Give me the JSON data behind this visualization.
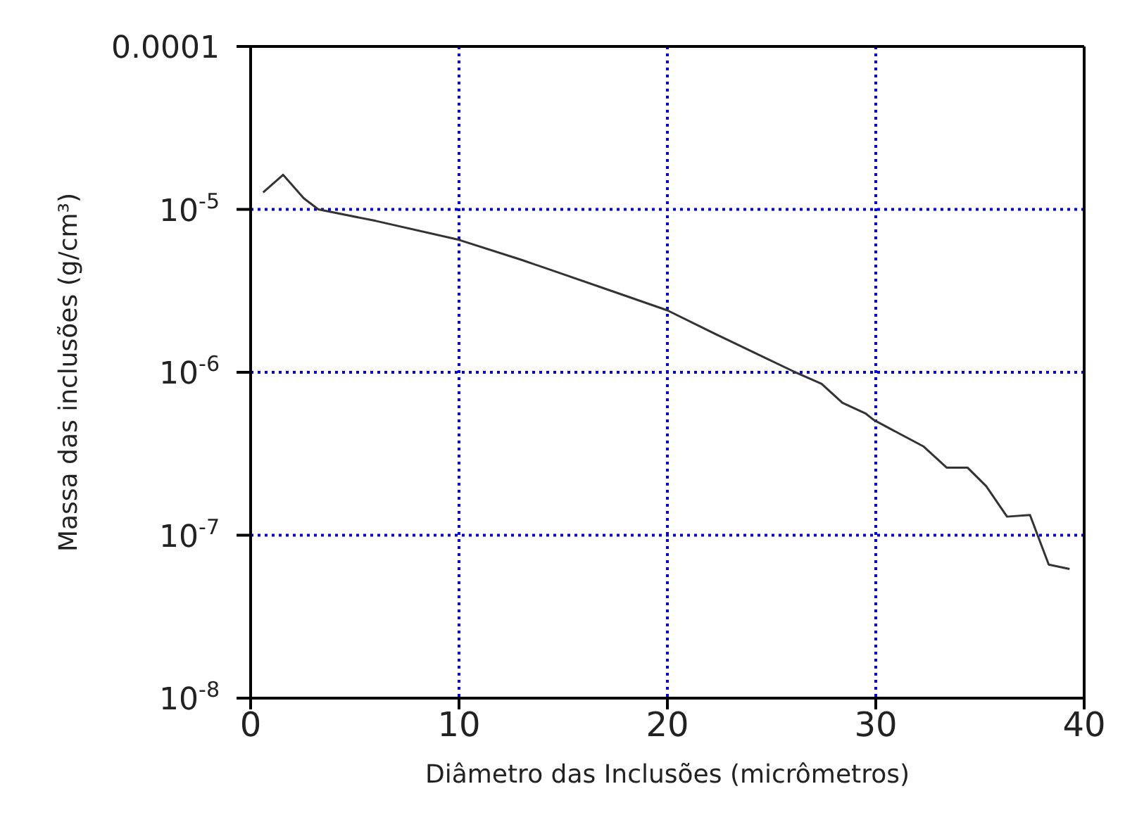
{
  "chart_data": {
    "type": "line",
    "xlabel": "Diâmetro das Inclusões (micrômetros)",
    "ylabel": "Massa das inclusões (g/cm³)",
    "x": [
      0.6,
      1.56,
      2.55,
      3.25,
      6,
      10,
      13,
      15,
      17.5,
      20,
      22.5,
      26.0,
      27.4,
      28.4,
      29.5,
      29.9,
      32.3,
      33.4,
      34.4,
      35.3,
      36.3,
      37.4,
      38.3,
      39.3
    ],
    "series": [
      {
        "color": "#333333",
        "values": [
          1.27e-05,
          1.63e-05,
          1.17e-05,
          1e-05,
          8.5e-06,
          6.5e-06,
          4.9e-06,
          4e-06,
          3.1e-06,
          2.4e-06,
          1.67e-06,
          1.02e-06,
          8.5e-07,
          6.5e-07,
          5.6e-07,
          5.1e-07,
          3.5e-07,
          2.6e-07,
          2.6e-07,
          2e-07,
          1.3e-07,
          1.33e-07,
          6.6e-08,
          6.2e-08
        ]
      }
    ],
    "xlim": [
      0,
      40
    ],
    "xticks": [
      0,
      10,
      20,
      30,
      40
    ],
    "ylim": [
      1e-08,
      0.0001
    ],
    "yticks": [
      {
        "value": 1e-08,
        "label": "10$^{-8}$"
      },
      {
        "value": 1e-07,
        "label": "10$^{-7}$"
      },
      {
        "value": 1e-06,
        "label": "10$^{-6}$"
      },
      {
        "value": 1e-05,
        "label": "10$^{-5}$"
      },
      {
        "value": 0.0001,
        "label": "0.0001"
      }
    ],
    "log": "y",
    "grid": true,
    "legend": false,
    "marker": "none",
    "line_style": "solid"
  }
}
